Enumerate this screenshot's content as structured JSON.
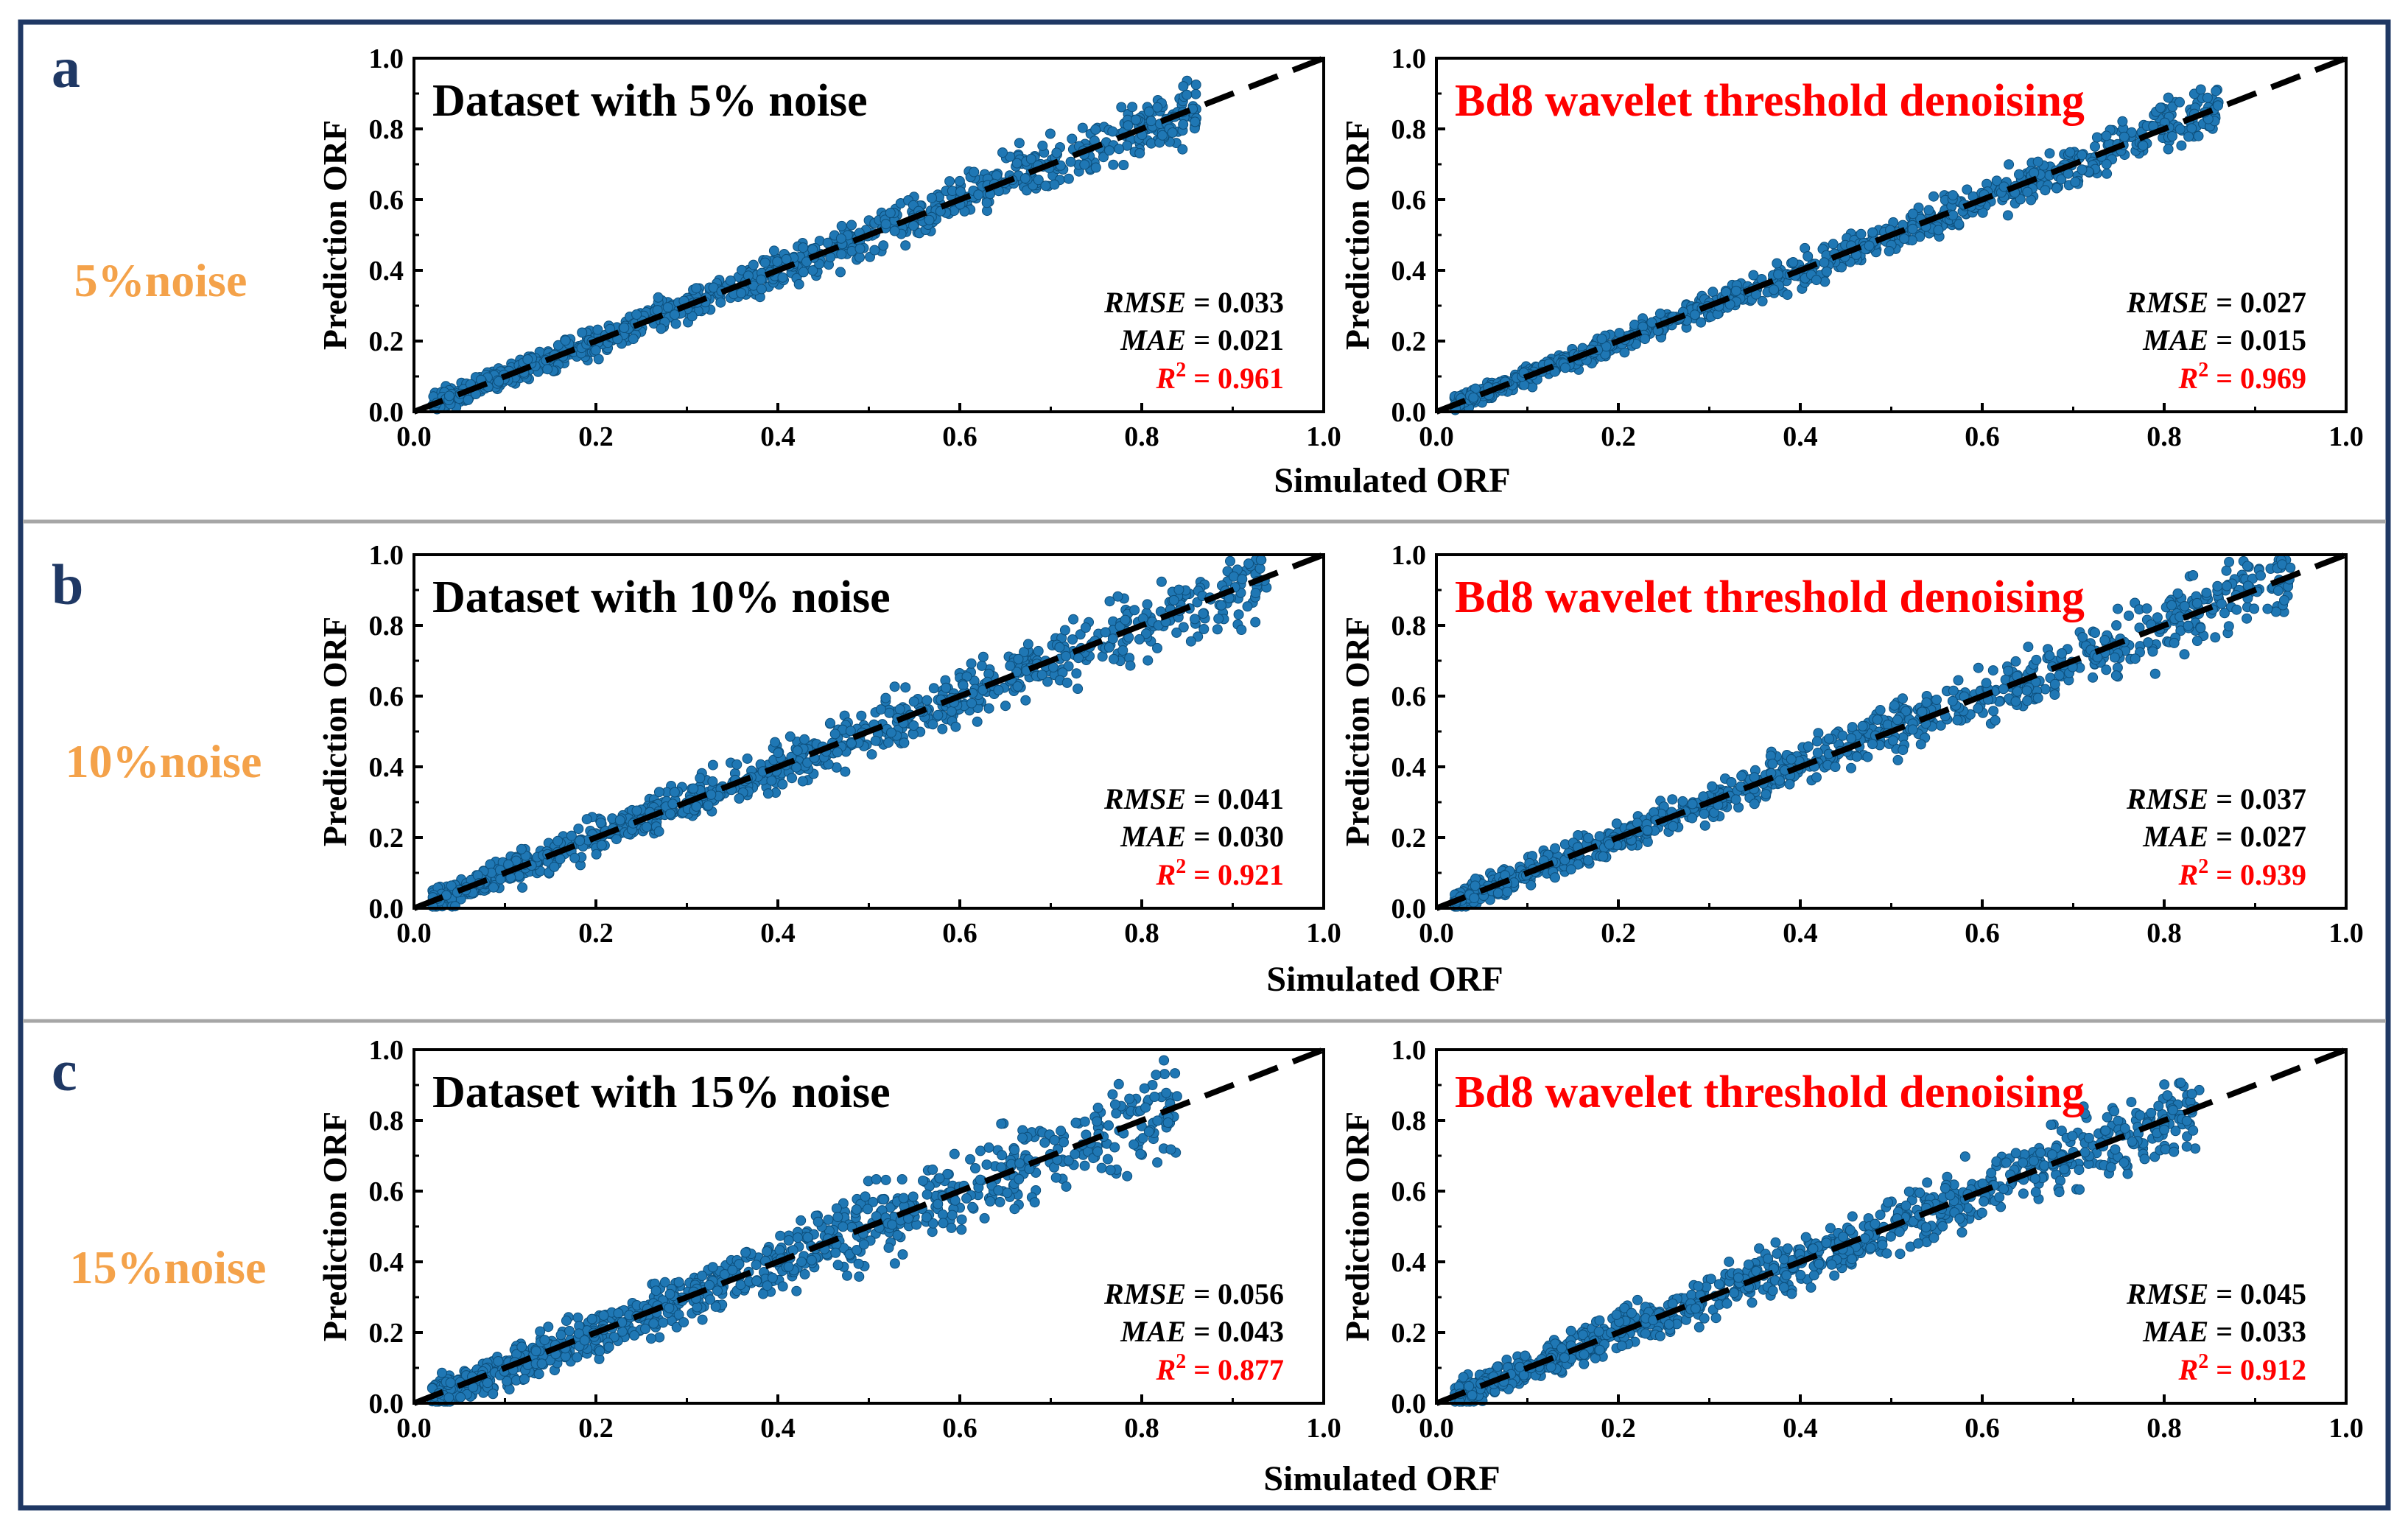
{
  "figure": {
    "border_color": "#1f3864",
    "divider_color": "#a6a6a6",
    "panel_letter_color": "#1f3864",
    "noise_label_color": "#f4a24a",
    "point_color": "#1f77b4",
    "highlight_color": "#ff0000",
    "x_axis_title": "Simulated ORF",
    "y_axis_title": "Prediction ORF"
  },
  "rows": [
    {
      "letter": "a",
      "noise_label": "5%noise"
    },
    {
      "letter": "b",
      "noise_label": "10%noise"
    },
    {
      "letter": "c",
      "noise_label": "15%noise"
    }
  ],
  "chart_data": [
    {
      "type": "scatter",
      "row": 0,
      "col": 0,
      "title": "Dataset with 5% noise",
      "title_color": "#000000",
      "xlabel": "Simulated ORF",
      "ylabel": "Prediction ORF",
      "xlim": [
        0,
        1
      ],
      "ylim": [
        0,
        1
      ],
      "xticks": [
        "0.0",
        "0.2",
        "0.4",
        "0.6",
        "0.8",
        "1.0"
      ],
      "yticks": [
        "0.0",
        "0.2",
        "0.4",
        "0.6",
        "0.8",
        "1.0"
      ],
      "reference_line": "y = x (dashed)",
      "rmse": "0.033",
      "mae": "0.021",
      "r2": "0.961",
      "n_points": 900,
      "spread": 0.033,
      "xmax": 0.86,
      "seed": 11
    },
    {
      "type": "scatter",
      "row": 0,
      "col": 1,
      "title": "Bd8 wavelet threshold denoising",
      "title_color": "#ff0000",
      "xlabel": "Simulated ORF",
      "ylabel": "Prediction ORF",
      "xlim": [
        0,
        1
      ],
      "ylim": [
        0,
        1
      ],
      "xticks": [
        "0.0",
        "0.2",
        "0.4",
        "0.6",
        "0.8",
        "1.0"
      ],
      "yticks": [
        "0.0",
        "0.2",
        "0.4",
        "0.6",
        "0.8",
        "1.0"
      ],
      "reference_line": "y = x (dashed)",
      "rmse": "0.027",
      "mae": "0.015",
      "r2": "0.969",
      "n_points": 900,
      "spread": 0.027,
      "xmax": 0.86,
      "seed": 23
    },
    {
      "type": "scatter",
      "row": 1,
      "col": 0,
      "title": "Dataset with 10% noise",
      "title_color": "#000000",
      "xlabel": "Simulated ORF",
      "ylabel": "Prediction ORF",
      "xlim": [
        0,
        1
      ],
      "ylim": [
        0,
        1
      ],
      "xticks": [
        "0.0",
        "0.2",
        "0.4",
        "0.6",
        "0.8",
        "1.0"
      ],
      "yticks": [
        "0.0",
        "0.2",
        "0.4",
        "0.6",
        "0.8",
        "1.0"
      ],
      "reference_line": "y = x (dashed)",
      "rmse": "0.041",
      "mae": "0.030",
      "r2": "0.921",
      "n_points": 900,
      "spread": 0.041,
      "xmax": 0.94,
      "seed": 37
    },
    {
      "type": "scatter",
      "row": 1,
      "col": 1,
      "title": "Bd8 wavelet threshold denoising",
      "title_color": "#ff0000",
      "xlabel": "Simulated ORF",
      "ylabel": "Prediction ORF",
      "xlim": [
        0,
        1
      ],
      "ylim": [
        0,
        1
      ],
      "xticks": [
        "0.0",
        "0.2",
        "0.4",
        "0.6",
        "0.8",
        "1.0"
      ],
      "yticks": [
        "0.0",
        "0.2",
        "0.4",
        "0.6",
        "0.8",
        "1.0"
      ],
      "reference_line": "y = x (dashed)",
      "rmse": "0.037",
      "mae": "0.027",
      "r2": "0.939",
      "n_points": 900,
      "spread": 0.037,
      "xmax": 0.94,
      "seed": 41
    },
    {
      "type": "scatter",
      "row": 2,
      "col": 0,
      "title": "Dataset with 15% noise",
      "title_color": "#000000",
      "xlabel": "Simulated ORF",
      "ylabel": "Prediction ORF",
      "xlim": [
        0,
        1
      ],
      "ylim": [
        0,
        1
      ],
      "xticks": [
        "0.0",
        "0.2",
        "0.4",
        "0.6",
        "0.8",
        "1.0"
      ],
      "yticks": [
        "0.0",
        "0.2",
        "0.4",
        "0.6",
        "0.8",
        "1.0"
      ],
      "reference_line": "y = x (dashed)",
      "rmse": "0.056",
      "mae": "0.043",
      "r2": "0.877",
      "n_points": 900,
      "spread": 0.056,
      "xmax": 0.84,
      "seed": 53
    },
    {
      "type": "scatter",
      "row": 2,
      "col": 1,
      "title": "Bd8 wavelet threshold denoising",
      "title_color": "#ff0000",
      "xlabel": "Simulated ORF",
      "ylabel": "Prediction ORF",
      "xlim": [
        0,
        1
      ],
      "ylim": [
        0,
        1
      ],
      "xticks": [
        "0.0",
        "0.2",
        "0.4",
        "0.6",
        "0.8",
        "1.0"
      ],
      "yticks": [
        "0.0",
        "0.2",
        "0.4",
        "0.6",
        "0.8",
        "1.0"
      ],
      "reference_line": "y = x (dashed)",
      "rmse": "0.045",
      "mae": "0.033",
      "r2": "0.912",
      "n_points": 900,
      "spread": 0.045,
      "xmax": 0.84,
      "seed": 67
    }
  ]
}
